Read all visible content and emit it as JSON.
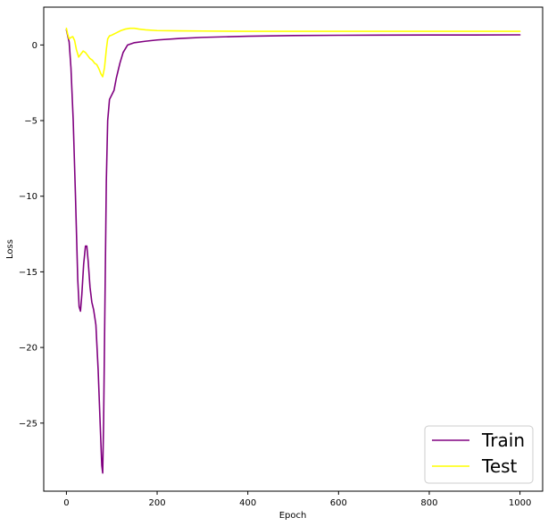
{
  "chart_data": {
    "type": "line",
    "title": "",
    "xlabel": "Epoch",
    "ylabel": "Loss",
    "xlim": [
      -50,
      1050
    ],
    "ylim": [
      -29.5,
      2.5
    ],
    "xticks": [
      0,
      200,
      400,
      600,
      800,
      1000
    ],
    "yticks": [
      0,
      -5,
      -10,
      -15,
      -20,
      -25
    ],
    "x_tick_labels": [
      "0",
      "200",
      "400",
      "600",
      "800",
      "1000"
    ],
    "y_tick_labels": [
      "0",
      "−5",
      "−10",
      "−15",
      "−20",
      "−25"
    ],
    "grid": false,
    "legend_position": "lower-right",
    "series": [
      {
        "name": "Train",
        "color": "#800080",
        "points": [
          [
            0,
            1.0
          ],
          [
            3,
            0.6
          ],
          [
            6,
            0.2
          ],
          [
            10,
            -1.5
          ],
          [
            15,
            -5.0
          ],
          [
            20,
            -10.0
          ],
          [
            25,
            -15.5
          ],
          [
            28,
            -17.3
          ],
          [
            31,
            -17.6
          ],
          [
            34,
            -16.5
          ],
          [
            38,
            -14.5
          ],
          [
            42,
            -13.3
          ],
          [
            45,
            -13.3
          ],
          [
            48,
            -14.3
          ],
          [
            52,
            -16.0
          ],
          [
            56,
            -17.0
          ],
          [
            60,
            -17.5
          ],
          [
            65,
            -18.5
          ],
          [
            70,
            -21.5
          ],
          [
            75,
            -25.5
          ],
          [
            78,
            -27.8
          ],
          [
            80,
            -28.3
          ],
          [
            82,
            -25.0
          ],
          [
            85,
            -17.0
          ],
          [
            88,
            -9.0
          ],
          [
            91,
            -5.0
          ],
          [
            95,
            -3.6
          ],
          [
            100,
            -3.3
          ],
          [
            105,
            -3.0
          ],
          [
            110,
            -2.2
          ],
          [
            118,
            -1.2
          ],
          [
            125,
            -0.5
          ],
          [
            135,
            0.0
          ],
          [
            150,
            0.15
          ],
          [
            175,
            0.25
          ],
          [
            200,
            0.33
          ],
          [
            250,
            0.43
          ],
          [
            300,
            0.5
          ],
          [
            400,
            0.58
          ],
          [
            500,
            0.62
          ],
          [
            600,
            0.64
          ],
          [
            700,
            0.65
          ],
          [
            800,
            0.66
          ],
          [
            900,
            0.66
          ],
          [
            1000,
            0.67
          ]
        ]
      },
      {
        "name": "Test",
        "color": "#ffff00",
        "points": [
          [
            0,
            1.1
          ],
          [
            3,
            0.7
          ],
          [
            6,
            0.4
          ],
          [
            10,
            0.5
          ],
          [
            14,
            0.55
          ],
          [
            18,
            0.3
          ],
          [
            22,
            -0.3
          ],
          [
            27,
            -0.8
          ],
          [
            32,
            -0.6
          ],
          [
            37,
            -0.4
          ],
          [
            42,
            -0.5
          ],
          [
            47,
            -0.7
          ],
          [
            52,
            -0.9
          ],
          [
            57,
            -1.0
          ],
          [
            62,
            -1.2
          ],
          [
            67,
            -1.3
          ],
          [
            72,
            -1.6
          ],
          [
            76,
            -1.9
          ],
          [
            80,
            -2.1
          ],
          [
            84,
            -1.5
          ],
          [
            88,
            -0.3
          ],
          [
            91,
            0.4
          ],
          [
            95,
            0.6
          ],
          [
            100,
            0.65
          ],
          [
            110,
            0.8
          ],
          [
            120,
            0.95
          ],
          [
            130,
            1.05
          ],
          [
            140,
            1.1
          ],
          [
            150,
            1.1
          ],
          [
            160,
            1.05
          ],
          [
            175,
            1.0
          ],
          [
            200,
            0.95
          ],
          [
            250,
            0.93
          ],
          [
            300,
            0.92
          ],
          [
            400,
            0.9
          ],
          [
            500,
            0.9
          ],
          [
            600,
            0.9
          ],
          [
            700,
            0.9
          ],
          [
            800,
            0.9
          ],
          [
            900,
            0.9
          ],
          [
            1000,
            0.9
          ]
        ]
      }
    ]
  }
}
